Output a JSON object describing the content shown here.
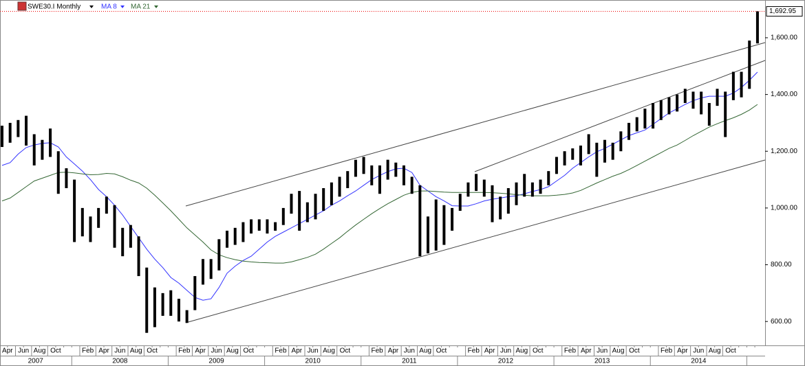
{
  "chart_data": {
    "type": "ohlc",
    "title": "SWE30.I Monthly",
    "ylim": [
      523,
      1733
    ],
    "yticks": [
      {
        "value": 600,
        "label": "600.00"
      },
      {
        "value": 800,
        "label": "800.00"
      },
      {
        "value": 1000,
        "label": "1,000.00"
      },
      {
        "value": 1200,
        "label": "1,200.00"
      },
      {
        "value": 1400,
        "label": "1,400.00"
      },
      {
        "value": 1600,
        "label": "1,600.00"
      }
    ],
    "last_price": {
      "value": 1692.95,
      "label": "1,692.95"
    },
    "categories": [
      "Apr",
      null,
      "Jun",
      null,
      "Aug",
      null,
      "Oct",
      null,
      null,
      null,
      "Feb",
      null,
      "Apr",
      null,
      "Jun",
      null,
      "Aug",
      null,
      "Oct",
      null,
      null,
      null,
      "Feb",
      null,
      "Apr",
      null,
      "Jun",
      null,
      "Aug",
      null,
      "Oct",
      null,
      null,
      null,
      "Feb",
      null,
      "Apr",
      null,
      "Jun",
      null,
      "Aug",
      null,
      "Oct",
      null,
      null,
      null,
      "Feb",
      null,
      "Apr",
      null,
      "Jun",
      null,
      "Aug",
      null,
      "Oct",
      null,
      null,
      null,
      "Feb",
      null,
      "Apr",
      null,
      "Jun",
      null,
      "Aug",
      null,
      "Oct",
      null,
      null,
      null,
      "Feb",
      null,
      "Apr",
      null,
      "Jun",
      null,
      "Aug",
      null,
      "Oct",
      null,
      null,
      null,
      "Feb",
      null,
      "Apr",
      null,
      "Jun",
      null,
      "Aug",
      null,
      "Oct",
      null,
      null,
      null,
      null
    ],
    "years": [
      "2007",
      "2008",
      "2009",
      "2010",
      "2011",
      "2012",
      "2013",
      "2014"
    ],
    "bar_color": "#000000",
    "high": [
      1290,
      1300,
      1310,
      1325,
      1260,
      1240,
      1280,
      1200,
      1140,
      1100,
      1000,
      970,
      1000,
      1040,
      1010,
      930,
      940,
      900,
      790,
      720,
      700,
      710,
      680,
      640,
      760,
      820,
      820,
      890,
      920,
      930,
      950,
      960,
      960,
      960,
      950,
      1000,
      1050,
      1060,
      1020,
      1050,
      1070,
      1090,
      1110,
      1130,
      1170,
      1180,
      1150,
      1150,
      1170,
      1160,
      1150,
      1110,
      1080,
      970,
      1030,
      1010,
      1000,
      1050,
      1090,
      1120,
      1100,
      1080,
      1040,
      1070,
      1090,
      1120,
      1090,
      1100,
      1130,
      1180,
      1200,
      1210,
      1220,
      1260,
      1230,
      1240,
      1230,
      1270,
      1300,
      1320,
      1350,
      1370,
      1380,
      1390,
      1400,
      1420,
      1410,
      1410,
      1370,
      1420,
      1410,
      1480,
      1480,
      1590,
      1692.95
    ],
    "low": [
      1215,
      1230,
      1250,
      1220,
      1150,
      1170,
      1180,
      1050,
      1070,
      880,
      900,
      880,
      930,
      980,
      860,
      830,
      860,
      760,
      560,
      580,
      620,
      620,
      600,
      595,
      640,
      730,
      750,
      780,
      860,
      870,
      880,
      910,
      920,
      910,
      920,
      940,
      980,
      920,
      950,
      960,
      990,
      1010,
      1040,
      1070,
      1110,
      1120,
      1080,
      1050,
      1100,
      1110,
      1080,
      1050,
      830,
      840,
      850,
      870,
      920,
      990,
      1040,
      1060,
      1040,
      950,
      960,
      980,
      1010,
      1040,
      1040,
      1050,
      1080,
      1120,
      1150,
      1170,
      1150,
      1190,
      1110,
      1160,
      1170,
      1200,
      1240,
      1270,
      1280,
      1280,
      1310,
      1330,
      1340,
      1370,
      1350,
      1330,
      1290,
      1360,
      1250,
      1380,
      1390,
      1420,
      1580
    ],
    "series": [
      {
        "name": "MA 8",
        "color": "#3333ff",
        "values": [
          1150,
          1160,
          1190,
          1213,
          1222,
          1228,
          1230,
          1215,
          1180,
          1155,
          1130,
          1100,
          1065,
          1040,
          1010,
          975,
          935,
          895,
          855,
          820,
          790,
          755,
          735,
          710,
          685,
          675,
          680,
          720,
          770,
          795,
          815,
          830,
          855,
          880,
          900,
          915,
          930,
          945,
          960,
          975,
          990,
          1010,
          1025,
          1043,
          1060,
          1080,
          1100,
          1115,
          1128,
          1138,
          1140,
          1125,
          1080,
          1060,
          1040,
          1025,
          1008,
          1007,
          1007,
          1015,
          1025,
          1031,
          1035,
          1040,
          1043,
          1050,
          1058,
          1065,
          1075,
          1095,
          1115,
          1140,
          1160,
          1180,
          1198,
          1210,
          1225,
          1240,
          1255,
          1265,
          1275,
          1295,
          1315,
          1335,
          1350,
          1365,
          1378,
          1388,
          1394,
          1394,
          1394,
          1405,
          1425,
          1450,
          1479
        ]
      },
      {
        "name": "MA 21",
        "color": "#336633",
        "values": [
          1025,
          1035,
          1055,
          1075,
          1095,
          1105,
          1115,
          1125,
          1126,
          1124,
          1120,
          1117,
          1118,
          1122,
          1120,
          1110,
          1098,
          1088,
          1070,
          1045,
          1018,
          990,
          960,
          930,
          905,
          880,
          852,
          835,
          825,
          818,
          813,
          810,
          808,
          807,
          806,
          806,
          810,
          818,
          826,
          837,
          855,
          875,
          895,
          918,
          940,
          960,
          980,
          998,
          1015,
          1030,
          1045,
          1055,
          1060,
          1060,
          1058,
          1056,
          1055,
          1055,
          1055,
          1055,
          1055,
          1054,
          1052,
          1050,
          1047,
          1045,
          1043,
          1043,
          1043,
          1045,
          1048,
          1053,
          1062,
          1075,
          1088,
          1100,
          1112,
          1122,
          1135,
          1150,
          1165,
          1180,
          1195,
          1210,
          1222,
          1238,
          1255,
          1270,
          1285,
          1297,
          1308,
          1318,
          1330,
          1345,
          1365
        ]
      }
    ]
  }
}
